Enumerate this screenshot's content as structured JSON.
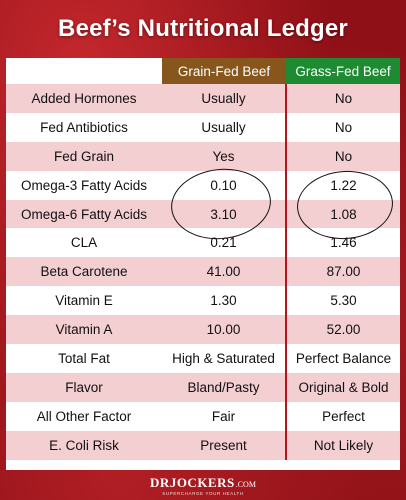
{
  "header": {
    "title": "Beef’s Nutritional Ledger"
  },
  "table": {
    "columns": [
      "",
      "Grain-Fed Beef",
      "Grass-Fed Beef"
    ],
    "column_colors": {
      "grain": "#86561d",
      "grass": "#1e8a32"
    },
    "rows": [
      {
        "label": "Added Hormones",
        "grain": "Usually",
        "grass": "No"
      },
      {
        "label": "Fed Antibiotics",
        "grain": "Usually",
        "grass": "No"
      },
      {
        "label": "Fed Grain",
        "grain": "Yes",
        "grass": "No"
      },
      {
        "label": "Omega-3 Fatty Acids",
        "grain": "0.10",
        "grass": "1.22"
      },
      {
        "label": "Omega-6 Fatty Acids",
        "grain": "3.10",
        "grass": "1.08"
      },
      {
        "label": "CLA",
        "grain": "0.21",
        "grass": "1.46"
      },
      {
        "label": "Beta Carotene",
        "grain": "41.00",
        "grass": "87.00"
      },
      {
        "label": "Vitamin E",
        "grain": "1.30",
        "grass": "5.30"
      },
      {
        "label": "Vitamin A",
        "grain": "10.00",
        "grass": "52.00"
      },
      {
        "label": "Total Fat",
        "grain": "High & Saturated",
        "grass": "Perfect Balance"
      },
      {
        "label": "Flavor",
        "grain": "Bland/Pasty",
        "grass": "Original & Bold"
      },
      {
        "label": "All Other Factor",
        "grain": "Fair",
        "grass": "Perfect"
      },
      {
        "label": "E. Coli Risk",
        "grain": "Present",
        "grass": "Not Likely"
      }
    ]
  },
  "footer": {
    "logo_dr": "DR",
    "logo_jockers": "JOCKERS",
    "logo_com": ".COM",
    "tagline": "SUPERCHARGE YOUR HEALTH"
  },
  "colors": {
    "background": "#8f1117",
    "shaded_row": "#f3cfd2",
    "divider": "#b8141b"
  }
}
